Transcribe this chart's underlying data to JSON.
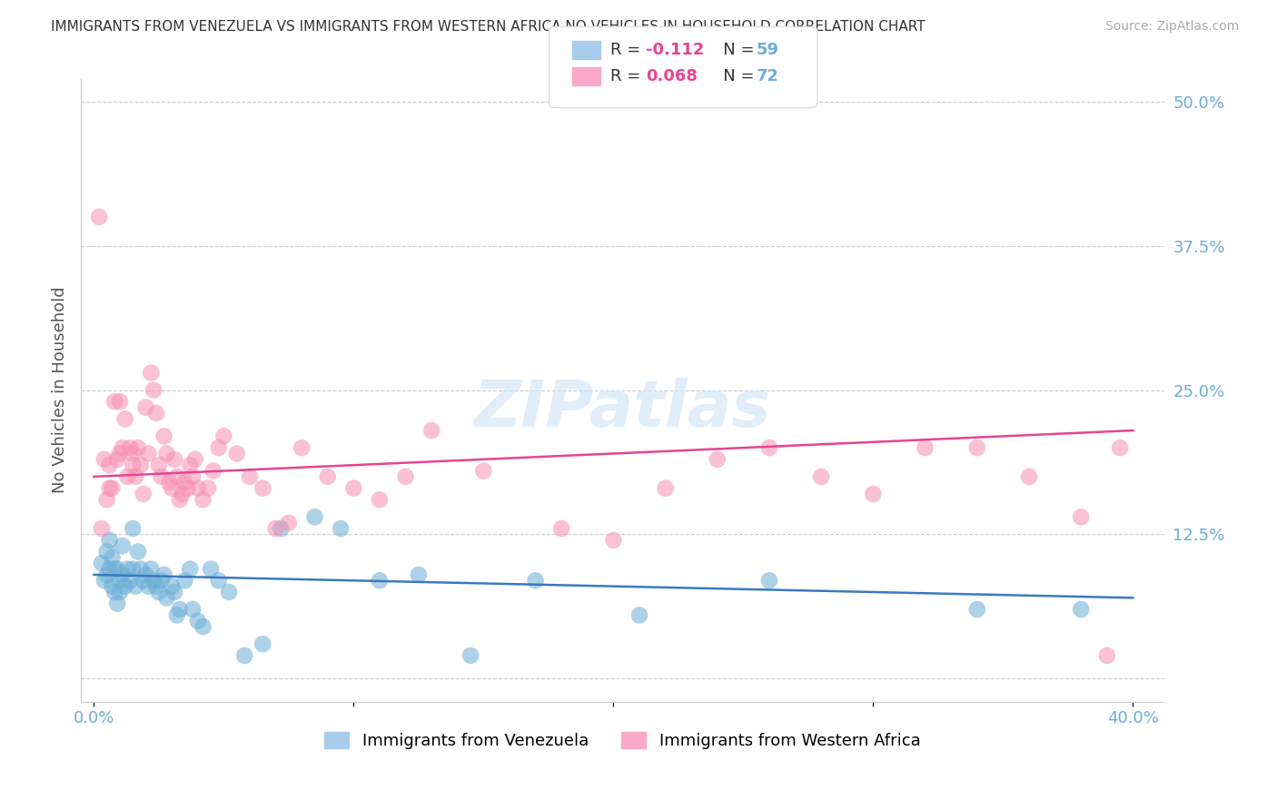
{
  "title": "IMMIGRANTS FROM VENEZUELA VS IMMIGRANTS FROM WESTERN AFRICA NO VEHICLES IN HOUSEHOLD CORRELATION CHART",
  "source": "Source: ZipAtlas.com",
  "ylabel": "No Vehicles in Household",
  "xlim": [
    0.0,
    0.4
  ],
  "ylim": [
    -0.02,
    0.52
  ],
  "xticks": [
    0.0,
    0.1,
    0.2,
    0.3,
    0.4
  ],
  "xtick_labels": [
    "0.0%",
    "",
    "",
    "",
    "40.0%"
  ],
  "yticks": [
    0.0,
    0.125,
    0.25,
    0.375,
    0.5
  ],
  "ytick_labels": [
    "",
    "12.5%",
    "25.0%",
    "37.5%",
    "50.0%"
  ],
  "venezuela_color": "#6baed6",
  "western_africa_color": "#f78fb3",
  "venezuela_R": -0.112,
  "venezuela_N": 59,
  "western_africa_R": 0.068,
  "western_africa_N": 72,
  "background_color": "#ffffff",
  "grid_color": "#cccccc",
  "venezuela_x": [
    0.003,
    0.004,
    0.005,
    0.005,
    0.006,
    0.006,
    0.007,
    0.007,
    0.008,
    0.008,
    0.009,
    0.009,
    0.01,
    0.01,
    0.011,
    0.011,
    0.012,
    0.013,
    0.014,
    0.015,
    0.015,
    0.016,
    0.017,
    0.018,
    0.019,
    0.02,
    0.021,
    0.022,
    0.023,
    0.024,
    0.025,
    0.026,
    0.027,
    0.028,
    0.03,
    0.031,
    0.032,
    0.033,
    0.035,
    0.037,
    0.038,
    0.04,
    0.042,
    0.045,
    0.048,
    0.052,
    0.058,
    0.065,
    0.072,
    0.085,
    0.095,
    0.11,
    0.125,
    0.145,
    0.17,
    0.21,
    0.26,
    0.34,
    0.38
  ],
  "venezuela_y": [
    0.1,
    0.085,
    0.11,
    0.09,
    0.095,
    0.12,
    0.105,
    0.08,
    0.095,
    0.075,
    0.065,
    0.095,
    0.085,
    0.075,
    0.115,
    0.09,
    0.08,
    0.095,
    0.085,
    0.13,
    0.095,
    0.08,
    0.11,
    0.095,
    0.085,
    0.09,
    0.08,
    0.095,
    0.085,
    0.08,
    0.075,
    0.085,
    0.09,
    0.07,
    0.08,
    0.075,
    0.055,
    0.06,
    0.085,
    0.095,
    0.06,
    0.05,
    0.045,
    0.095,
    0.085,
    0.075,
    0.02,
    0.03,
    0.13,
    0.14,
    0.13,
    0.085,
    0.09,
    0.02,
    0.085,
    0.055,
    0.085,
    0.06,
    0.06
  ],
  "western_africa_x": [
    0.002,
    0.003,
    0.004,
    0.005,
    0.006,
    0.006,
    0.007,
    0.008,
    0.009,
    0.01,
    0.01,
    0.011,
    0.012,
    0.013,
    0.014,
    0.015,
    0.015,
    0.016,
    0.017,
    0.018,
    0.019,
    0.02,
    0.021,
    0.022,
    0.023,
    0.024,
    0.025,
    0.026,
    0.027,
    0.028,
    0.029,
    0.03,
    0.031,
    0.032,
    0.033,
    0.034,
    0.035,
    0.036,
    0.037,
    0.038,
    0.039,
    0.04,
    0.042,
    0.044,
    0.046,
    0.048,
    0.05,
    0.055,
    0.06,
    0.065,
    0.07,
    0.075,
    0.08,
    0.09,
    0.1,
    0.11,
    0.12,
    0.13,
    0.15,
    0.18,
    0.2,
    0.22,
    0.24,
    0.26,
    0.28,
    0.3,
    0.32,
    0.34,
    0.36,
    0.38,
    0.39,
    0.395
  ],
  "western_africa_y": [
    0.4,
    0.13,
    0.19,
    0.155,
    0.165,
    0.185,
    0.165,
    0.24,
    0.19,
    0.24,
    0.195,
    0.2,
    0.225,
    0.175,
    0.2,
    0.185,
    0.195,
    0.175,
    0.2,
    0.185,
    0.16,
    0.235,
    0.195,
    0.265,
    0.25,
    0.23,
    0.185,
    0.175,
    0.21,
    0.195,
    0.17,
    0.165,
    0.19,
    0.175,
    0.155,
    0.16,
    0.17,
    0.165,
    0.185,
    0.175,
    0.19,
    0.165,
    0.155,
    0.165,
    0.18,
    0.2,
    0.21,
    0.195,
    0.175,
    0.165,
    0.13,
    0.135,
    0.2,
    0.175,
    0.165,
    0.155,
    0.175,
    0.215,
    0.18,
    0.13,
    0.12,
    0.165,
    0.19,
    0.2,
    0.175,
    0.16,
    0.2,
    0.2,
    0.175,
    0.14,
    0.02,
    0.2
  ],
  "ven_line_x0": 0.0,
  "ven_line_x1": 0.4,
  "ven_line_y0": 0.09,
  "ven_line_y1": 0.07,
  "waf_line_x0": 0.0,
  "waf_line_x1": 0.4,
  "waf_line_y0": 0.175,
  "waf_line_y1": 0.215,
  "ven_line_color": "#3a7abf",
  "waf_line_color": "#e84393",
  "legend_R_color": "#e84393",
  "legend_N_color": "#6baed6",
  "legend_ven_patch": "#a8ccec",
  "legend_waf_patch": "#f8aac8",
  "title_fontsize": 11,
  "source_fontsize": 10,
  "tick_fontsize": 13,
  "ylabel_fontsize": 13,
  "legend_fontsize": 13,
  "scatter_alpha": 0.55,
  "scatter_size": 180,
  "trend_linewidth": 1.8
}
